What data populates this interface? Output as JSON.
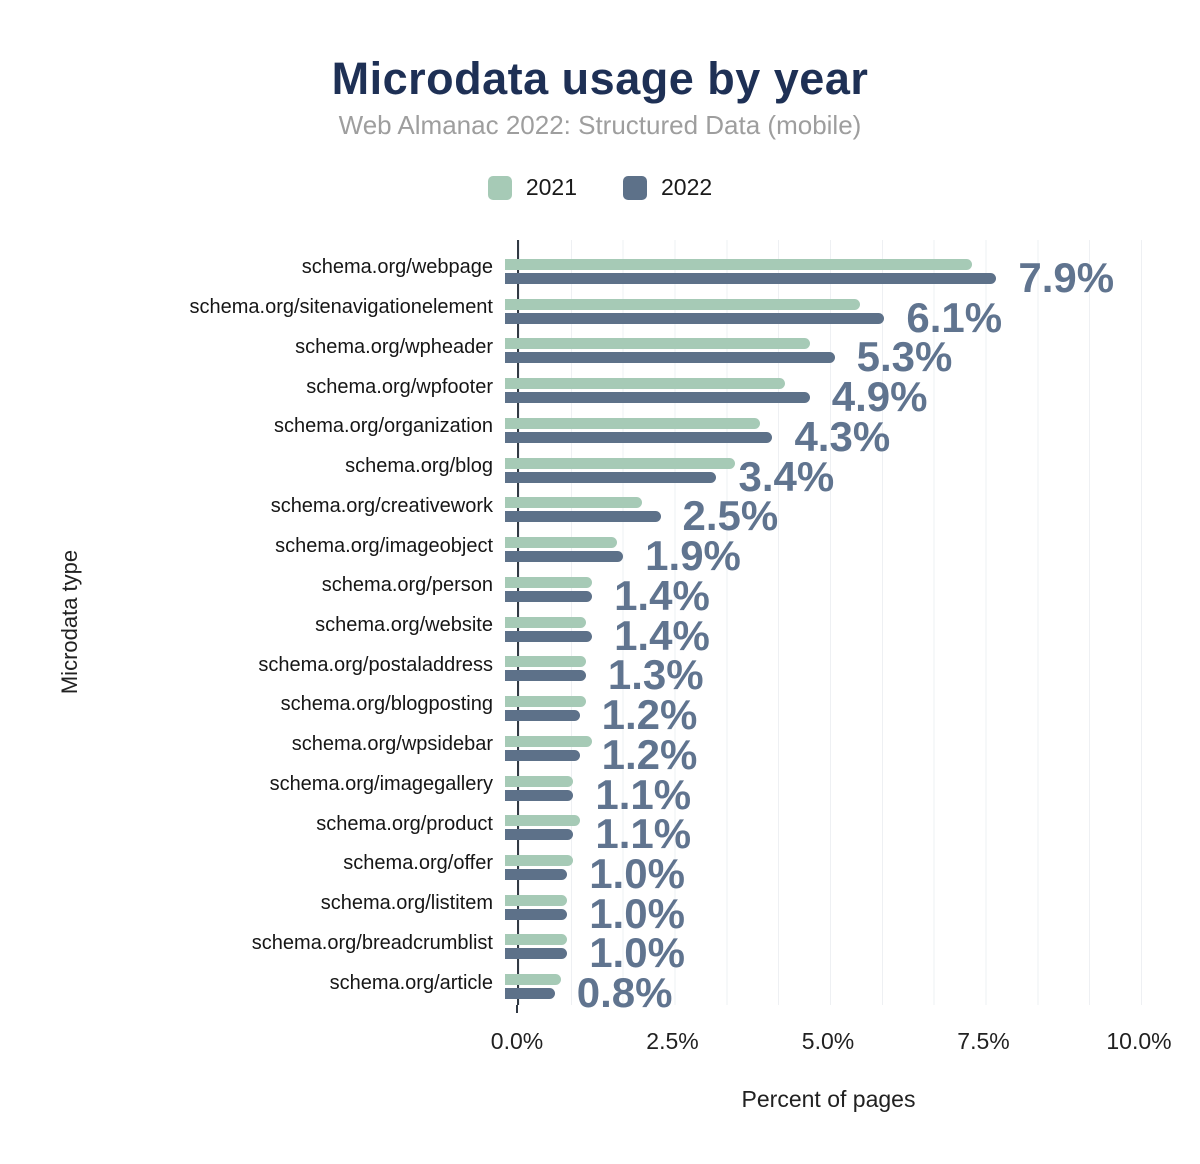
{
  "chart_data": {
    "type": "bar",
    "orientation": "horizontal",
    "title": "Microdata usage by year",
    "subtitle": "Web Almanac 2022: Structured Data (mobile)",
    "xlabel": "Percent of pages",
    "ylabel": "Microdata type",
    "legend_position": "top",
    "grid": true,
    "x_axis": {
      "min": 0,
      "max": 10,
      "tick_labels": [
        "0.0%",
        "2.5%",
        "5.0%",
        "7.5%",
        "10.0%"
      ]
    },
    "categories": [
      "schema.org/webpage",
      "schema.org/sitenavigationelement",
      "schema.org/wpheader",
      "schema.org/wpfooter",
      "schema.org/organization",
      "schema.org/blog",
      "schema.org/creativework",
      "schema.org/imageobject",
      "schema.org/person",
      "schema.org/website",
      "schema.org/postaladdress",
      "schema.org/blogposting",
      "schema.org/wpsidebar",
      "schema.org/imagegallery",
      "schema.org/product",
      "schema.org/offer",
      "schema.org/listitem",
      "schema.org/breadcrumblist",
      "schema.org/article"
    ],
    "series": [
      {
        "name": "2021",
        "color": "#a6cab6",
        "values": [
          7.5,
          5.7,
          4.9,
          4.5,
          4.1,
          3.7,
          2.2,
          1.8,
          1.4,
          1.3,
          1.3,
          1.3,
          1.4,
          1.1,
          1.2,
          1.1,
          1.0,
          1.0,
          0.9
        ]
      },
      {
        "name": "2022",
        "color": "#5d7189",
        "values": [
          7.9,
          6.1,
          5.3,
          4.9,
          4.3,
          3.4,
          2.5,
          1.9,
          1.4,
          1.4,
          1.3,
          1.2,
          1.2,
          1.1,
          1.1,
          1.0,
          1.0,
          1.0,
          0.8
        ]
      }
    ],
    "value_labels": [
      "7.9%",
      "6.1%",
      "5.3%",
      "4.9%",
      "4.3%",
      "3.4%",
      "2.5%",
      "1.9%",
      "1.4%",
      "1.4%",
      "1.3%",
      "1.2%",
      "1.2%",
      "1.1%",
      "1.1%",
      "1.0%",
      "1.0%",
      "1.0%",
      "0.8%"
    ],
    "colors": {
      "title": "#1e3055",
      "subtitle": "#9e9e9e",
      "value_label": "#60748f",
      "axis_line": "#323a44",
      "gridline": "#eef0f3",
      "category_label": "#161616",
      "tick_label": "#212121"
    }
  }
}
